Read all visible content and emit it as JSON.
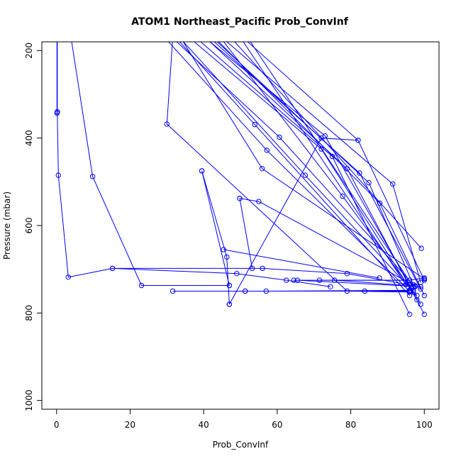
{
  "chart_data": {
    "type": "line",
    "title": "ATOM1 Northeast_Pacific Prob_ConvInf",
    "xlabel": "Prob_ConvInf",
    "ylabel": "Pressure (mbar)",
    "xlim": [
      -4,
      104
    ],
    "ylim": [
      1020,
      180
    ],
    "y_reversed": true,
    "x_ticks": [
      0,
      20,
      40,
      60,
      80,
      100
    ],
    "y_ticks": [
      200,
      400,
      600,
      800,
      1000
    ],
    "grid": false,
    "series_color": "#0000ff",
    "series": [
      {
        "points": [
          [
            0.2,
            105
          ],
          [
            0.2,
            340
          ]
        ]
      },
      {
        "points": [
          [
            0.1,
            105
          ],
          [
            0.1,
            343
          ]
        ]
      },
      {
        "points": [
          [
            0.2,
            340
          ],
          [
            0.5,
            485
          ],
          [
            3.2,
            718
          ],
          [
            15.2,
            698
          ],
          [
            49.0,
            710
          ],
          [
            62.5,
            725
          ],
          [
            74.5,
            740
          ]
        ]
      },
      {
        "points": [
          [
            3,
            120
          ],
          [
            9.8,
            488
          ],
          [
            23.1,
            737
          ],
          [
            47.0,
            737
          ]
        ]
      },
      {
        "points": [
          [
            32,
            120
          ],
          [
            30.0,
            368
          ],
          [
            79.0,
            750
          ],
          [
            96.0,
            752
          ]
        ]
      },
      {
        "points": [
          [
            30,
            120
          ],
          [
            55.9,
            470
          ],
          [
            100,
            722
          ]
        ]
      },
      {
        "points": [
          [
            39.5,
            475
          ],
          [
            47.0,
            737
          ]
        ]
      },
      {
        "points": [
          [
            39.5,
            475
          ],
          [
            46.3,
            672
          ],
          [
            47.0,
            780
          ]
        ]
      },
      {
        "points": [
          [
            47.0,
            780
          ],
          [
            72,
            400
          ],
          [
            82,
            405
          ]
        ]
      },
      {
        "points": [
          [
            49.8,
            538
          ],
          [
            53.2,
            698
          ]
        ]
      },
      {
        "points": [
          [
            49.8,
            538
          ],
          [
            55.0,
            545
          ],
          [
            97.5,
            738
          ]
        ]
      },
      {
        "points": [
          [
            45.4,
            655
          ],
          [
            87.8,
            720
          ]
        ]
      },
      {
        "points": [
          [
            15.2,
            698
          ],
          [
            56.0,
            698
          ],
          [
            79.0,
            710
          ],
          [
            97.5,
            738
          ]
        ]
      },
      {
        "points": [
          [
            64.5,
            725
          ],
          [
            96.0,
            725
          ]
        ]
      },
      {
        "points": [
          [
            65.5,
            725
          ],
          [
            99.0,
            740
          ]
        ]
      },
      {
        "points": [
          [
            31.6,
            750
          ],
          [
            51.3,
            750
          ],
          [
            57.0,
            750
          ],
          [
            97.0,
            748
          ]
        ]
      },
      {
        "points": [
          [
            51.3,
            750
          ],
          [
            96.0,
            750
          ]
        ]
      },
      {
        "points": [
          [
            71.5,
            725
          ],
          [
            96.0,
            725
          ],
          [
            100,
            720
          ]
        ]
      },
      {
        "points": [
          [
            75.6,
            725
          ],
          [
            97.5,
            738
          ]
        ]
      },
      {
        "points": [
          [
            83.8,
            750
          ],
          [
            96.0,
            748
          ]
        ]
      },
      {
        "points": [
          [
            24,
            120
          ],
          [
            57.2,
            428
          ],
          [
            96.0,
            750
          ]
        ]
      },
      {
        "points": [
          [
            25,
            120
          ],
          [
            60.6,
            398
          ],
          [
            97.5,
            740
          ]
        ]
      },
      {
        "points": [
          [
            27,
            120
          ],
          [
            53.9,
            369
          ],
          [
            96.0,
            760
          ]
        ]
      },
      {
        "points": [
          [
            28,
            120
          ],
          [
            67.6,
            485
          ],
          [
            98.0,
            760
          ]
        ]
      },
      {
        "points": [
          [
            29,
            120
          ],
          [
            72.0,
            425
          ],
          [
            98.0,
            770
          ]
        ]
      },
      {
        "points": [
          [
            31,
            120
          ],
          [
            75.0,
            442
          ],
          [
            96.0,
            803
          ]
        ]
      },
      {
        "points": [
          [
            33,
            120
          ],
          [
            73.0,
            395
          ],
          [
            99.0,
            780
          ]
        ]
      },
      {
        "points": [
          [
            34,
            120
          ],
          [
            79.0,
            470
          ],
          [
            100,
            803
          ]
        ]
      },
      {
        "points": [
          [
            35,
            120
          ],
          [
            82.4,
            480
          ],
          [
            99.0,
            745
          ]
        ]
      },
      {
        "points": [
          [
            36,
            120
          ],
          [
            84.9,
            502
          ],
          [
            97.0,
            735
          ]
        ]
      },
      {
        "points": [
          [
            37,
            120
          ],
          [
            87.9,
            549
          ],
          [
            100,
            760
          ]
        ]
      },
      {
        "points": [
          [
            38,
            120
          ],
          [
            91.4,
            505
          ],
          [
            99.0,
            730
          ]
        ]
      },
      {
        "points": [
          [
            40,
            120
          ],
          [
            77.8,
            533
          ],
          [
            97.0,
            752
          ]
        ]
      },
      {
        "points": [
          [
            42,
            120
          ],
          [
            99.2,
            652
          ]
        ]
      },
      {
        "points": [
          [
            44,
            120
          ],
          [
            82.0,
            405
          ],
          [
            100,
            725
          ]
        ]
      },
      {
        "points": [
          [
            46,
            120
          ],
          [
            95.0,
            735
          ]
        ]
      },
      {
        "points": [
          [
            48,
            120
          ],
          [
            97.0,
            740
          ]
        ]
      }
    ]
  }
}
